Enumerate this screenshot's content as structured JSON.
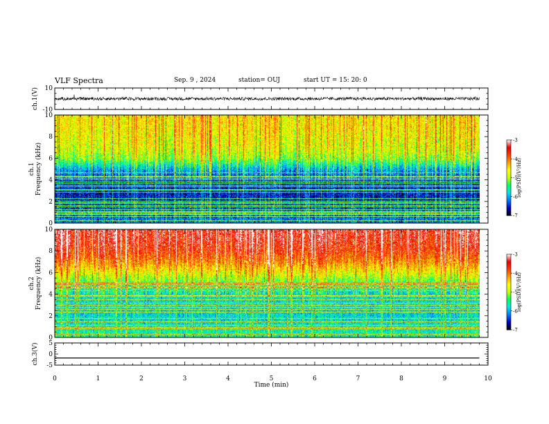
{
  "header": {
    "title": "VLF Spectra",
    "date": "Sep. 9 , 2024",
    "station": "station= OUJ",
    "start": "start UT =  15: 20: 0"
  },
  "chart_data": [
    {
      "type": "line",
      "panel": "ch1-waveform",
      "ylabel": "ch.1(V)",
      "ylim": [
        -10,
        10
      ],
      "yticks": [
        "10",
        "-10"
      ],
      "description_values": {
        "baseline": 0.0,
        "typical_amplitude": 1.5,
        "max_spike": 4.5
      }
    },
    {
      "type": "heatmap",
      "panel": "ch1-spectrogram",
      "ylabel": "ch.1\nFrequency (kHz)",
      "ylim": [
        0,
        10
      ],
      "yticks": [
        "0",
        "2",
        "4",
        "6",
        "8",
        "10"
      ],
      "xlim": [
        0,
        10
      ],
      "data_extent_min": 9.8,
      "profile": [
        {
          "f": 0,
          "v": -6.2
        },
        {
          "f": 1,
          "v": -6.3
        },
        {
          "f": 2,
          "v": -6.5
        },
        {
          "f": 3,
          "v": -6.6
        },
        {
          "f": 4,
          "v": -6.5
        },
        {
          "f": 5,
          "v": -6.0
        },
        {
          "f": 6,
          "v": -5.1
        },
        {
          "f": 7,
          "v": -4.8
        },
        {
          "f": 8,
          "v": -4.7
        },
        {
          "f": 9,
          "v": -4.6
        },
        {
          "f": 10,
          "v": -4.6
        }
      ]
    },
    {
      "type": "heatmap",
      "panel": "ch2-spectrogram",
      "ylabel": "ch.2\nFrequency (kHz)",
      "ylim": [
        0,
        10
      ],
      "yticks": [
        "0",
        "2",
        "4",
        "6",
        "8",
        "10"
      ],
      "xlim": [
        0,
        10
      ],
      "data_extent_min": 9.8,
      "profile": [
        {
          "f": 0,
          "v": -5.5
        },
        {
          "f": 1,
          "v": -5.7
        },
        {
          "f": 2,
          "v": -5.8
        },
        {
          "f": 3,
          "v": -5.8
        },
        {
          "f": 4,
          "v": -5.7
        },
        {
          "f": 5,
          "v": -5.3
        },
        {
          "f": 6,
          "v": -4.7
        },
        {
          "f": 7,
          "v": -4.1
        },
        {
          "f": 8,
          "v": -3.7
        },
        {
          "f": 9,
          "v": -3.5
        },
        {
          "f": 10,
          "v": -3.4
        }
      ]
    },
    {
      "type": "line",
      "panel": "ch3-waveform",
      "ylabel": "ch.3(V)",
      "ylim": [
        -5,
        5
      ],
      "yticks": [
        "5",
        "0",
        "-5"
      ],
      "constant_value": -1.8
    }
  ],
  "x_axis": {
    "label": "Time (min)",
    "ticks": [
      "0",
      "1",
      "2",
      "3",
      "4",
      "5",
      "6",
      "7",
      "8",
      "9",
      "10"
    ]
  },
  "colorbar": {
    "label": "log(PSD)(V²/Hz)",
    "ticks": [
      "-3",
      "-4",
      "-5",
      "-6",
      "-7"
    ],
    "range": [
      -7,
      -3
    ],
    "colors": [
      "#000000",
      "#0000c8",
      "#0078ff",
      "#00e6e6",
      "#00ff64",
      "#c8ff00",
      "#ffff00",
      "#ffa000",
      "#ff3c00",
      "#e60000",
      "#ffffff"
    ]
  }
}
